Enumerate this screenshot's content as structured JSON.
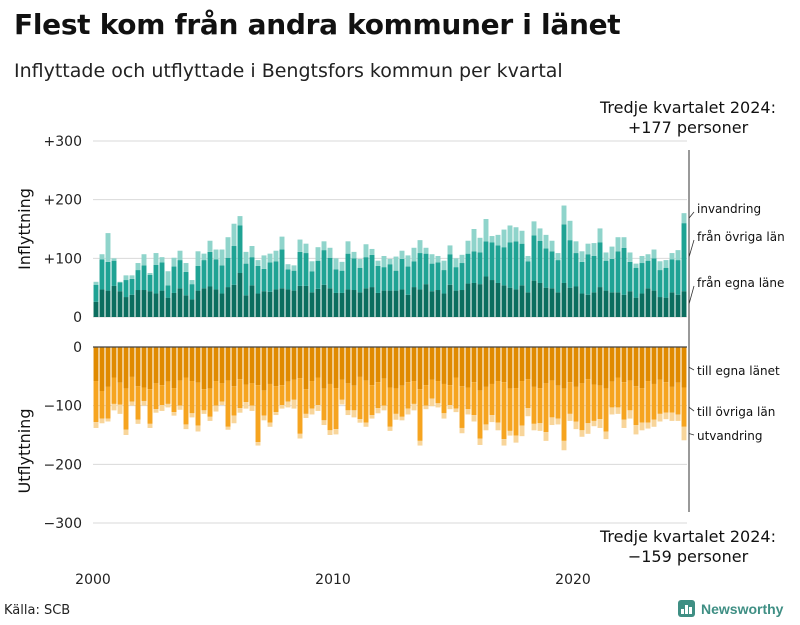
{
  "title": "Flest kom från andra kommuner i länet",
  "subtitle": "Inflyttade och utflyttade i Bengtsfors kommun per kvartal",
  "annotation_top": {
    "line1": "Tredje kvartalet 2024:",
    "line2": "+177 personer"
  },
  "annotation_bottom": {
    "line1": "Tredje kvartalet 2024:",
    "line2": "−159 personer"
  },
  "source": "Källa: SCB",
  "brand": "Newsworthy",
  "colors": {
    "in_lan": "#0b6e5f",
    "in_ovriga": "#1fa394",
    "in_invandring": "#8fd4cb",
    "out_lan": "#e08a00",
    "out_ovriga": "#f6a41f",
    "out_utvandring": "#f8d59a",
    "grid": "#d9d9d9"
  },
  "chart_data": {
    "type": "bar",
    "stacked": true,
    "start": "2000-Q1",
    "end": "2024-Q3",
    "frequency": "quarterly",
    "x_tick_labels": [
      "2000",
      "2010",
      "2020"
    ],
    "panels": [
      {
        "ylabel": "Inflyttning",
        "ylim": [
          0,
          300
        ],
        "y_ticks": [
          "0",
          "+100",
          "+200",
          "+300"
        ],
        "series": [
          {
            "name": "från egna läne",
            "values": [
              26,
              47,
              45,
              53,
              44,
              34,
              38,
              46,
              46,
              44,
              40,
              45,
              33,
              41,
              49,
              37,
              30,
              45,
              49,
              52,
              47,
              40,
              51,
              55,
              75,
              37,
              54,
              40,
              44,
              43,
              47,
              49,
              47,
              45,
              53,
              53,
              42,
              48,
              55,
              49,
              41,
              41,
              47,
              46,
              42,
              49,
              51,
              41,
              45,
              45,
              45,
              47,
              38,
              51,
              47,
              56,
              44,
              46,
              40,
              55,
              45,
              46,
              57,
              58,
              56,
              69,
              63,
              58,
              54,
              50,
              47,
              54,
              42,
              62,
              58,
              50,
              49,
              42,
              58,
              50,
              52,
              40,
              38,
              42,
              51,
              45,
              42,
              42,
              38,
              44,
              33,
              40,
              49,
              45,
              34,
              33,
              42,
              38,
              44
            ]
          },
          {
            "name": "från övriga län",
            "values": [
              29,
              51,
              49,
              43,
              15,
              29,
              27,
              34,
              42,
              28,
              49,
              48,
              21,
              45,
              48,
              40,
              26,
              42,
              48,
              59,
              51,
              48,
              50,
              66,
              81,
              54,
              48,
              47,
              38,
              50,
              48,
              66,
              34,
              34,
              58,
              56,
              36,
              48,
              59,
              52,
              40,
              38,
              61,
              54,
              42,
              53,
              55,
              46,
              40,
              45,
              34,
              52,
              48,
              44,
              62,
              52,
              47,
              47,
              40,
              52,
              40,
              46,
              51,
              54,
              54,
              60,
              64,
              64,
              65,
              77,
              82,
              71,
              53,
              77,
              72,
              67,
              63,
              55,
              100,
              81,
              57,
              54,
              69,
              62,
              76,
              51,
              57,
              70,
              80,
              50,
              51,
              52,
              47,
              55,
              46,
              51,
              56,
              59,
              116
            ]
          },
          {
            "name": "invandring",
            "values": [
              5,
              9,
              49,
              4,
              1,
              8,
              6,
              12,
              19,
              3,
              20,
              9,
              24,
              15,
              16,
              15,
              7,
              25,
              11,
              19,
              17,
              27,
              35,
              38,
              16,
              20,
              19,
              10,
              23,
              15,
              18,
              22,
              9,
              9,
              21,
              16,
              17,
              23,
              15,
              17,
              19,
              15,
              21,
              11,
              15,
              22,
              10,
              9,
              19,
              9,
              24,
              14,
              19,
              23,
              22,
              10,
              16,
              11,
              16,
              15,
              15,
              14,
              22,
              38,
              25,
              38,
              11,
              18,
              30,
              29,
              24,
              22,
              9,
              24,
              21,
              23,
              18,
              12,
              32,
              33,
              20,
              18,
              18,
              22,
              24,
              14,
              21,
              24,
              18,
              16,
              7,
              12,
              11,
              15,
              15,
              13,
              11,
              17,
              17
            ]
          }
        ]
      },
      {
        "ylabel": "Utflyttning",
        "ylim": [
          -300,
          0
        ],
        "y_ticks": [
          "0",
          "−100",
          "−200",
          "−300"
        ],
        "series": [
          {
            "name": "till egna länet",
            "values": [
              -58,
              -75,
              -68,
              -52,
              -61,
              -71,
              -51,
              -67,
              -69,
              -72,
              -62,
              -65,
              -59,
              -70,
              -57,
              -52,
              -58,
              -61,
              -72,
              -71,
              -58,
              -62,
              -57,
              -67,
              -55,
              -64,
              -62,
              -65,
              -74,
              -63,
              -67,
              -65,
              -59,
              -56,
              -53,
              -72,
              -58,
              -52,
              -71,
              -63,
              -70,
              -56,
              -62,
              -66,
              -51,
              -57,
              -65,
              -60,
              -54,
              -69,
              -71,
              -66,
              -60,
              -58,
              -72,
              -65,
              -56,
              -58,
              -63,
              -65,
              -52,
              -67,
              -69,
              -60,
              -74,
              -68,
              -63,
              -58,
              -60,
              -71,
              -70,
              -58,
              -55,
              -68,
              -70,
              -62,
              -57,
              -66,
              -71,
              -60,
              -68,
              -62,
              -55,
              -64,
              -66,
              -71,
              -59,
              -52,
              -60,
              -57,
              -67,
              -70,
              -58,
              -63,
              -56,
              -60,
              -68,
              -61,
              -69
            ]
          },
          {
            "name": "till övriga län",
            "values": [
              -70,
              -47,
              -54,
              -45,
              -37,
              -70,
              -42,
              -57,
              -23,
              -59,
              -44,
              -34,
              -38,
              -41,
              -43,
              -80,
              -55,
              -73,
              -36,
              -48,
              -42,
              -31,
              -79,
              -50,
              -49,
              -30,
              -38,
              -97,
              -43,
              -66,
              -44,
              -34,
              -34,
              -34,
              -95,
              -42,
              -47,
              -47,
              -54,
              -79,
              -70,
              -34,
              -46,
              -42,
              -72,
              -72,
              -51,
              -44,
              -46,
              -67,
              -43,
              -53,
              -45,
              -39,
              -88,
              -35,
              -32,
              -38,
              -50,
              -34,
              -53,
              -71,
              -37,
              -56,
              -82,
              -64,
              -53,
              -71,
              -97,
              -72,
              -81,
              -76,
              -49,
              -63,
              -60,
              -83,
              -63,
              -56,
              -89,
              -54,
              -59,
              -80,
              -75,
              -62,
              -57,
              -73,
              -44,
              -51,
              -64,
              -51,
              -66,
              -59,
              -71,
              -61,
              -58,
              -52,
              -44,
              -54,
              -67
            ]
          },
          {
            "name": "utvandring",
            "values": [
              -10,
              -8,
              -5,
              -11,
              -16,
              -9,
              -7,
              -7,
              -8,
              -7,
              -6,
              -10,
              -6,
              -6,
              -7,
              -8,
              -7,
              -10,
              -6,
              -7,
              -10,
              -6,
              -5,
              -13,
              -8,
              -11,
              -9,
              -6,
              -8,
              -7,
              -5,
              -6,
              -10,
              -15,
              -8,
              -7,
              -10,
              -10,
              -8,
              -8,
              -9,
              -8,
              -8,
              -12,
              -6,
              -7,
              -6,
              -9,
              -8,
              -7,
              -10,
              -6,
              -10,
              -11,
              -8,
              -6,
              -13,
              -7,
              -9,
              -7,
              -6,
              -9,
              -9,
              -11,
              -11,
              -10,
              -12,
              -13,
              -11,
              -8,
              -12,
              -18,
              -14,
              -11,
              -13,
              -15,
              -13,
              -10,
              -16,
              -12,
              -13,
              -11,
              -18,
              -9,
              -15,
              -13,
              -12,
              -11,
              -14,
              -14,
              -16,
              -13,
              -10,
              -12,
              -13,
              -11,
              -14,
              -11,
              -23
            ]
          }
        ]
      }
    ]
  }
}
